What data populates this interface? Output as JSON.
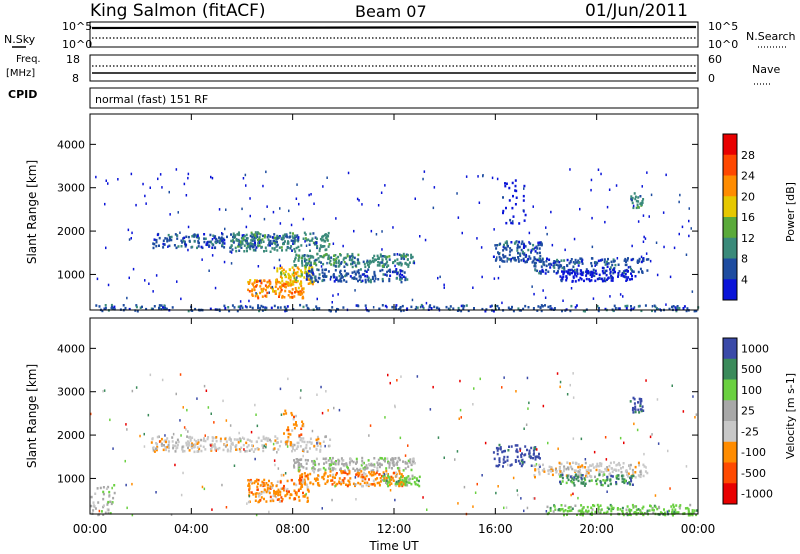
{
  "header": {
    "station": "King Salmon (fitACF)",
    "beam": "Beam 07",
    "date": "01/Jun/2011"
  },
  "top_panel": {
    "left_label": "N.Sky",
    "right_label": "N.Search",
    "left_ticks": [
      "10^5",
      "10^0"
    ],
    "right_ticks": [
      "10^5",
      "10^0"
    ]
  },
  "freq_panel": {
    "left_label_1": "Freq.",
    "left_label_2": "[MHz]",
    "right_label": "Nave",
    "left_ticks": [
      "18",
      "8"
    ],
    "right_ticks": [
      "60",
      "0"
    ]
  },
  "cpid": {
    "label": "CPID",
    "value": "normal (fast) 151 RF"
  },
  "colors": {
    "power": [
      "#0a14d8",
      "#1e4ca0",
      "#3a8a7a",
      "#5aaa3a",
      "#e6c800",
      "#ff8c00",
      "#ff4800",
      "#e80000"
    ],
    "velocity": [
      "#e80000",
      "#ff4a00",
      "#ff8c00",
      "#c8c8c8",
      "#a8a8a8",
      "#6ad040",
      "#3a8a5a",
      "#3a4aa8"
    ]
  },
  "chart_data": [
    {
      "type": "heatmap",
      "title": "King Salmon (fitACF)  Beam 07  01/Jun/2011",
      "xlabel": "",
      "ylabel": "Slant Range [km]",
      "colorbar_label": "Power [dB]",
      "colorbar_ticks": [
        "28",
        "24",
        "20",
        "16",
        "12",
        "8",
        "4"
      ],
      "x_ticks": [
        "00:00",
        "04:00",
        "08:00",
        "12:00",
        "16:00",
        "20:00",
        "00:00"
      ],
      "y_ticks": [
        "1000",
        "2000",
        "3000",
        "4000"
      ],
      "xlim": [
        0,
        24
      ],
      "ylim": [
        180,
        4700
      ],
      "blobs": [
        {
          "t0": 2.4,
          "t1": 8.2,
          "r0": 1640,
          "r1": 1960,
          "level": 1,
          "n": 220
        },
        {
          "t0": 5.5,
          "t1": 9.5,
          "r0": 1550,
          "r1": 2000,
          "level": 2,
          "n": 180
        },
        {
          "t0": 8.0,
          "t1": 12.8,
          "r0": 1200,
          "r1": 1500,
          "level": 2,
          "n": 220
        },
        {
          "t0": 6.2,
          "t1": 8.4,
          "r0": 480,
          "r1": 900,
          "level": 5,
          "n": 140
        },
        {
          "t0": 7.3,
          "t1": 8.8,
          "r0": 800,
          "r1": 1200,
          "level": 4,
          "n": 90
        },
        {
          "t0": 8.5,
          "t1": 12.5,
          "r0": 850,
          "r1": 1150,
          "level": 1,
          "n": 160
        },
        {
          "t0": 15.9,
          "t1": 17.8,
          "r0": 1300,
          "r1": 1800,
          "level": 1,
          "n": 120
        },
        {
          "t0": 17.5,
          "t1": 22.0,
          "r0": 1050,
          "r1": 1400,
          "level": 1,
          "n": 180
        },
        {
          "t0": 18.5,
          "t1": 21.5,
          "r0": 860,
          "r1": 1120,
          "level": 0,
          "n": 110
        },
        {
          "t0": 0.0,
          "t1": 24.0,
          "r0": 180,
          "r1": 320,
          "level": 1,
          "n": 260
        },
        {
          "t0": 21.3,
          "t1": 21.8,
          "r0": 2550,
          "r1": 2900,
          "level": 2,
          "n": 25
        },
        {
          "t0": 16.2,
          "t1": 17.2,
          "r0": 2200,
          "r1": 3200,
          "level": 0,
          "n": 30
        }
      ],
      "sparse_points": 260
    },
    {
      "type": "heatmap",
      "title": "",
      "xlabel": "Time UT",
      "ylabel": "Slant Range [km]",
      "colorbar_label": "Velocity [m s-1]",
      "colorbar_ticks": [
        "1000",
        "500",
        "100",
        "25",
        "-25",
        "-100",
        "-500",
        "-1000"
      ],
      "x_ticks": [
        "00:00",
        "04:00",
        "08:00",
        "12:00",
        "16:00",
        "20:00",
        "00:00"
      ],
      "y_ticks": [
        "1000",
        "2000",
        "3000",
        "4000"
      ],
      "xlim": [
        0,
        24
      ],
      "ylim": [
        180,
        4700
      ],
      "blobs": [
        {
          "t0": 2.4,
          "t1": 9.5,
          "r0": 1640,
          "r1": 2000,
          "level": 3,
          "n": 260
        },
        {
          "t0": 8.0,
          "t1": 12.8,
          "r0": 1200,
          "r1": 1500,
          "level": 4,
          "n": 200
        },
        {
          "t0": 6.2,
          "t1": 8.6,
          "r0": 480,
          "r1": 1000,
          "level": 2,
          "n": 160
        },
        {
          "t0": 8.2,
          "t1": 12.4,
          "r0": 850,
          "r1": 1200,
          "level": 2,
          "n": 190
        },
        {
          "t0": 11.5,
          "t1": 13.0,
          "r0": 850,
          "r1": 1100,
          "level": 5,
          "n": 50
        },
        {
          "t0": 7.6,
          "t1": 8.4,
          "r0": 1800,
          "r1": 2600,
          "level": 2,
          "n": 35
        },
        {
          "t0": 15.9,
          "t1": 17.8,
          "r0": 1300,
          "r1": 1800,
          "level": 7,
          "n": 80
        },
        {
          "t0": 17.5,
          "t1": 22.0,
          "r0": 1050,
          "r1": 1400,
          "level": 3,
          "n": 180
        },
        {
          "t0": 18.5,
          "t1": 21.5,
          "r0": 860,
          "r1": 1120,
          "level": 6,
          "n": 90
        },
        {
          "t0": 18.0,
          "t1": 24.0,
          "r0": 180,
          "r1": 420,
          "level": 5,
          "n": 200
        },
        {
          "t0": 21.3,
          "t1": 21.8,
          "r0": 2550,
          "r1": 2900,
          "level": 7,
          "n": 25
        },
        {
          "t0": 0.0,
          "t1": 1.0,
          "r0": 180,
          "r1": 900,
          "level": 4,
          "n": 40
        }
      ],
      "sparse_points": 220
    }
  ]
}
